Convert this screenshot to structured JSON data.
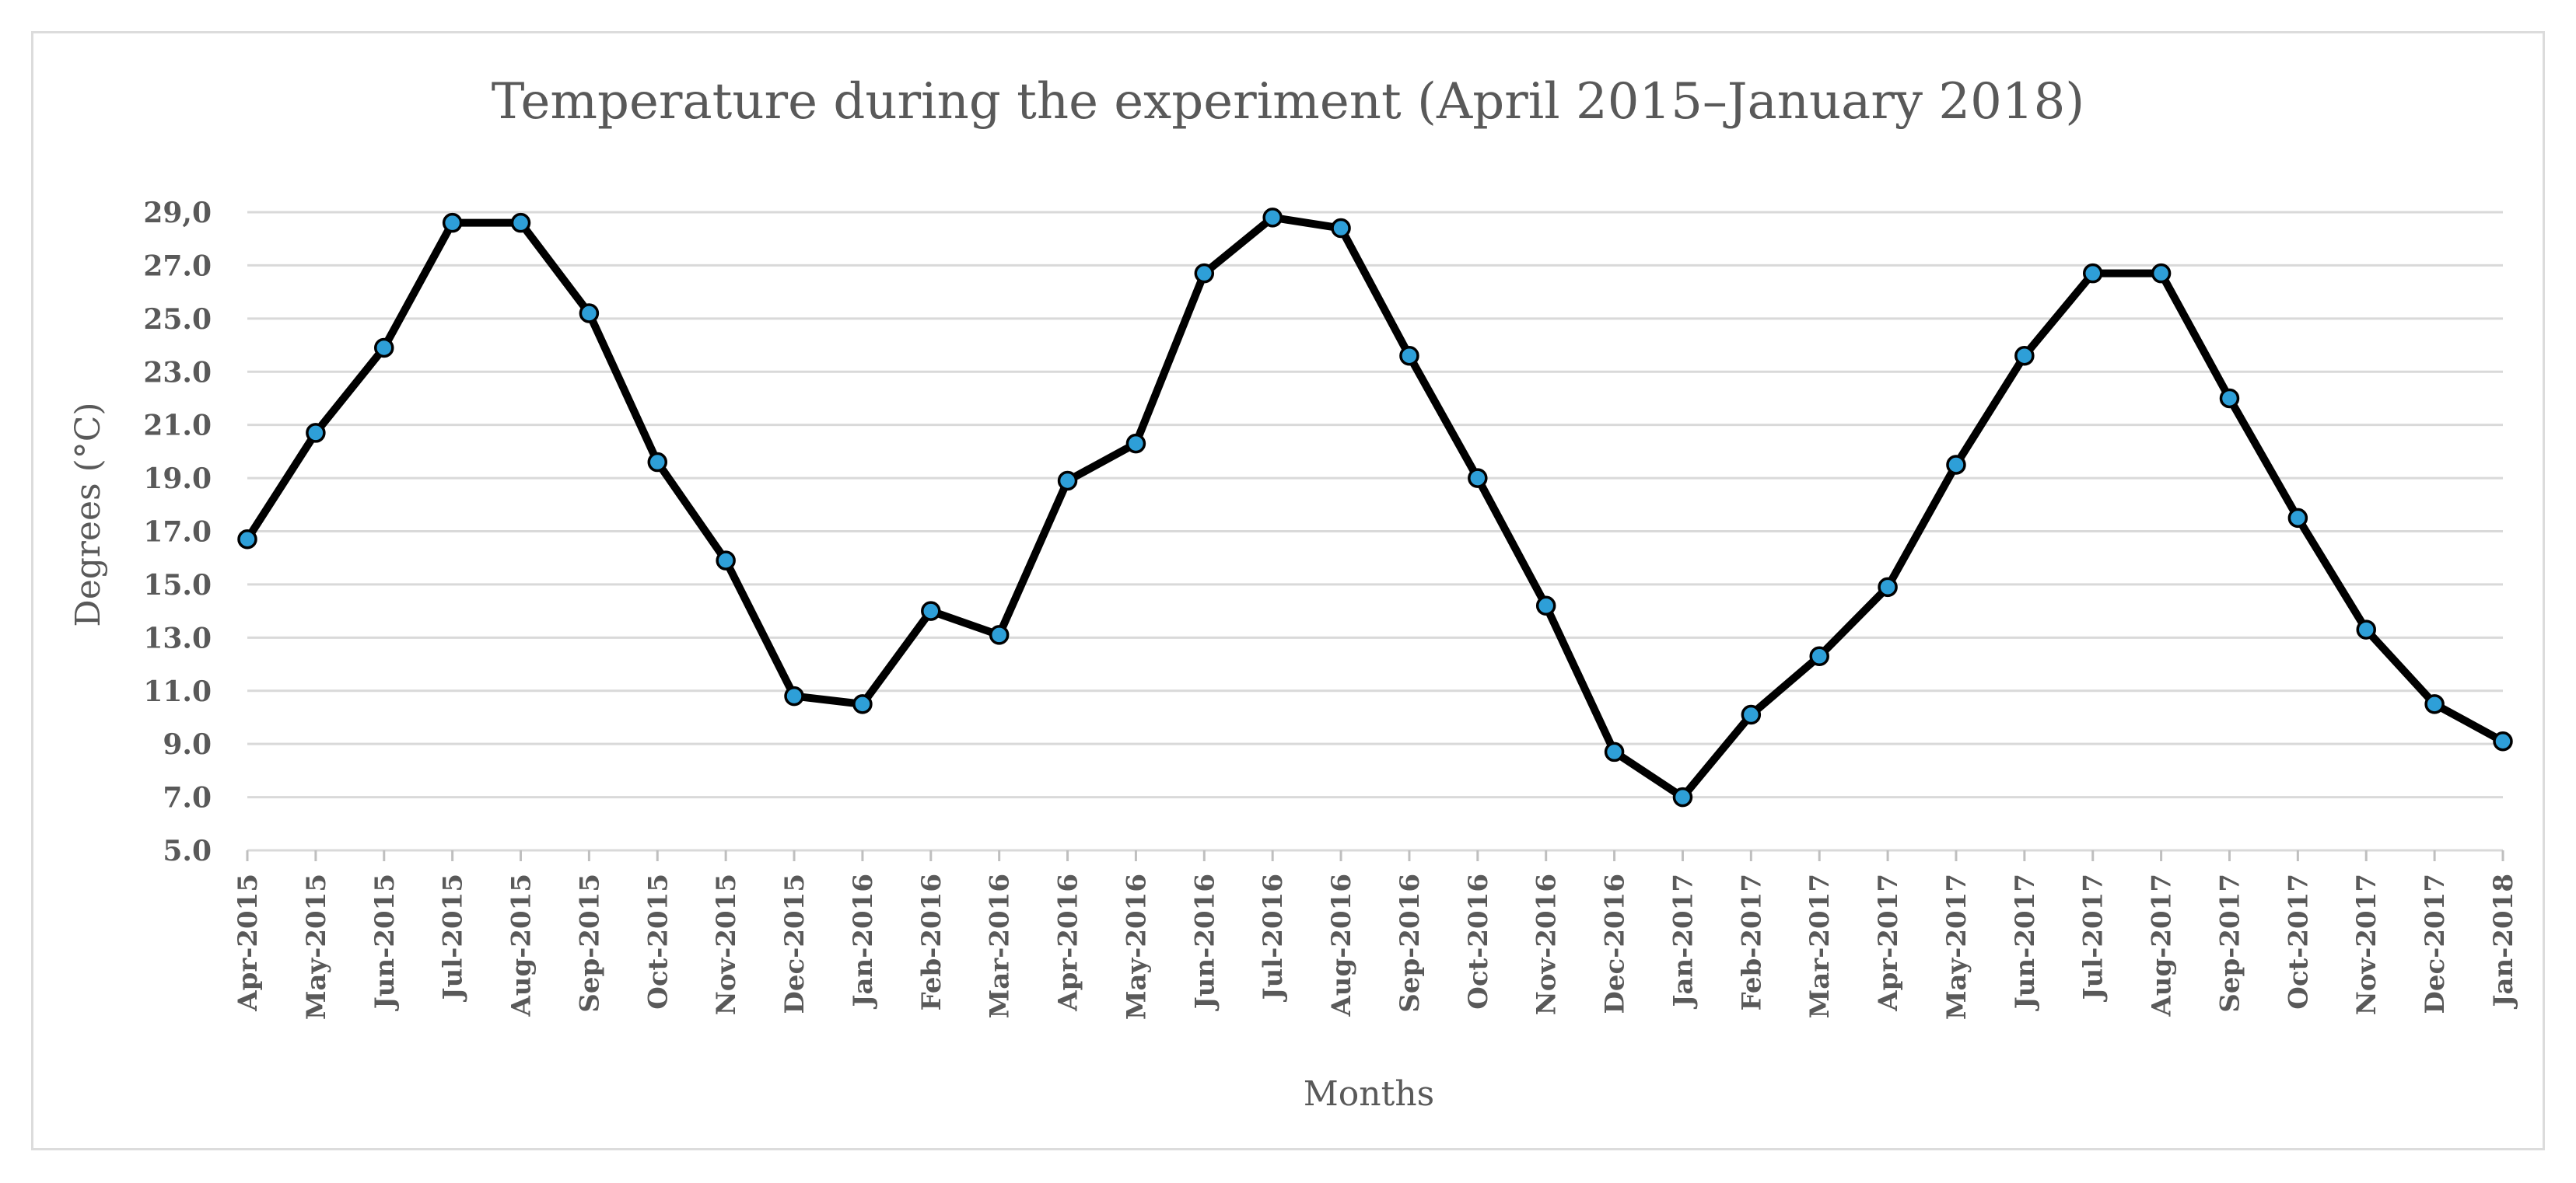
{
  "chart_data": {
    "type": "line",
    "title": "Temperature during the experiment (April 2015–January 2018)",
    "xlabel": "Months",
    "ylabel": "Degrees (°C)",
    "ylim": [
      5,
      29
    ],
    "yticks": [
      "5.0",
      "7.0",
      "9.0",
      "11.0",
      "13.0",
      "15.0",
      "17.0",
      "19.0",
      "21.0",
      "23.0",
      "25.0",
      "27.0",
      "29,0"
    ],
    "grid": true,
    "categories": [
      "Apr-2015",
      "May-2015",
      "Jun-2015",
      "Jul-2015",
      "Aug-2015",
      "Sep-2015",
      "Oct-2015",
      "Nov-2015",
      "Dec-2015",
      "Jan-2016",
      "Feb-2016",
      "Mar-2016",
      "Apr-2016",
      "May-2016",
      "Jun-2016",
      "Jul-2016",
      "Aug-2016",
      "Sep-2016",
      "Oct-2016",
      "Nov-2016",
      "Dec-2016",
      "Jan-2017",
      "Feb-2017",
      "Mar-2017",
      "Apr-2017",
      "May-2017",
      "Jun-2017",
      "Jul-2017",
      "Aug-2017",
      "Sep-2017",
      "Oct-2017",
      "Nov-2017",
      "Dec-2017",
      "Jan-2018"
    ],
    "series": [
      {
        "name": "Temperature",
        "values": [
          16.7,
          20.7,
          23.9,
          28.6,
          28.6,
          25.2,
          19.6,
          15.9,
          10.8,
          10.5,
          14.0,
          13.1,
          18.9,
          20.3,
          26.7,
          28.8,
          28.4,
          23.6,
          19.0,
          14.2,
          8.7,
          7.0,
          10.1,
          12.3,
          14.9,
          19.5,
          23.6,
          26.7,
          26.7,
          22.0,
          17.5,
          13.3,
          10.5,
          9.1
        ],
        "line_color": "#000000",
        "marker_color": "#2e9fd8"
      }
    ]
  }
}
